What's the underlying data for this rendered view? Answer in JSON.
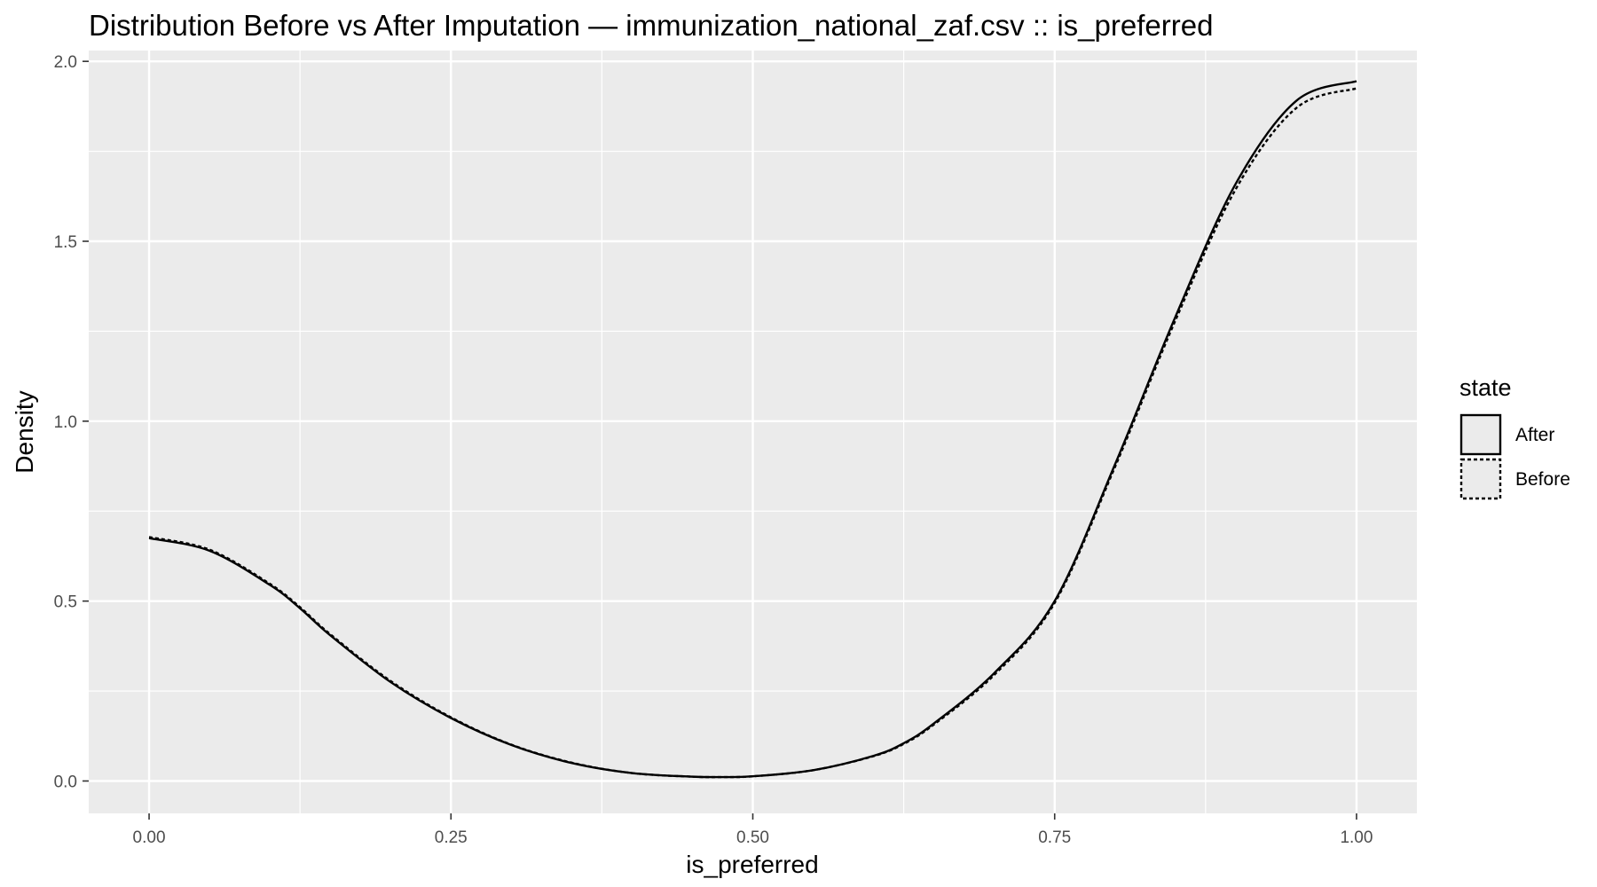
{
  "chart_data": {
    "type": "line",
    "title": "Distribution Before vs After Imputation — immunization_national_zaf.csv :: is_preferred",
    "xlabel": "is_preferred",
    "ylabel": "Density",
    "xlim": [
      -0.05,
      1.05
    ],
    "ylim": [
      -0.09,
      2.03
    ],
    "x_ticks": [
      {
        "value": 0,
        "label": "0.00"
      },
      {
        "value": 0.25,
        "label": "0.25"
      },
      {
        "value": 0.5,
        "label": "0.50"
      },
      {
        "value": 0.75,
        "label": "0.75"
      },
      {
        "value": 1,
        "label": "1.00"
      }
    ],
    "y_ticks": [
      {
        "value": 0,
        "label": "0.0"
      },
      {
        "value": 0.5,
        "label": "0.5"
      },
      {
        "value": 1,
        "label": "1.0"
      },
      {
        "value": 1.5,
        "label": "1.5"
      },
      {
        "value": 2,
        "label": "2.0"
      }
    ],
    "grid": true,
    "background_color": "#ebebeb",
    "grid_color": "#ffffff",
    "line_color": "#000000",
    "legend": {
      "title": "state",
      "position": "right"
    },
    "series": [
      {
        "name": "After",
        "linetype": "solid",
        "x": [
          0.0,
          0.05,
          0.1,
          0.125,
          0.15,
          0.2,
          0.25,
          0.3,
          0.35,
          0.4,
          0.45,
          0.475,
          0.5,
          0.55,
          0.6,
          0.625,
          0.65,
          0.7,
          0.75,
          0.8,
          0.85,
          0.9,
          0.95,
          1.0
        ],
        "values": [
          0.675,
          0.64,
          0.545,
          0.48,
          0.405,
          0.275,
          0.175,
          0.1,
          0.05,
          0.022,
          0.012,
          0.011,
          0.013,
          0.03,
          0.07,
          0.105,
          0.16,
          0.3,
          0.5,
          0.88,
          1.29,
          1.66,
          1.89,
          1.945
        ]
      },
      {
        "name": "Before",
        "linetype": "dashed",
        "x": [
          0.0,
          0.05,
          0.1,
          0.125,
          0.15,
          0.2,
          0.25,
          0.3,
          0.35,
          0.4,
          0.45,
          0.475,
          0.5,
          0.55,
          0.6,
          0.625,
          0.65,
          0.7,
          0.75,
          0.8,
          0.85,
          0.9,
          0.95,
          1.0
        ],
        "values": [
          0.678,
          0.643,
          0.548,
          0.483,
          0.408,
          0.278,
          0.177,
          0.101,
          0.051,
          0.022,
          0.012,
          0.011,
          0.013,
          0.03,
          0.069,
          0.103,
          0.157,
          0.295,
          0.495,
          0.873,
          1.28,
          1.645,
          1.87,
          1.925
        ]
      }
    ]
  }
}
